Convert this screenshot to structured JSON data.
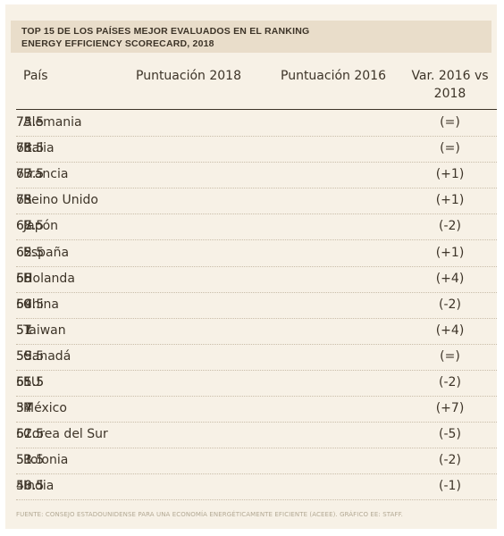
{
  "title": {
    "line1": "TOP 15 DE LOS PAÍSES MEJOR EVALUADOS EN EL RANKING",
    "line2": "ENERGY EFFICIENCY SCORECARD, 2018"
  },
  "columns": {
    "pais": "País",
    "p2018": "Puntuación 2018",
    "p2016": "Puntuación 2016",
    "var_line1": "Var. 2016 vs",
    "var_line2": "2018"
  },
  "rows": [
    {
      "pais": "Alemania",
      "p2018": "75.5",
      "p2016": "73.5",
      "var": "(=)"
    },
    {
      "pais": "Italia",
      "p2018": "75.5",
      "p2016": "68.5",
      "var": "(=)"
    },
    {
      "pais": "Francia",
      "p2018": "73.5",
      "p2016": "67.5",
      "var": "(+1)"
    },
    {
      "pais": "Reino Unido",
      "p2018": "73",
      "p2016": "65",
      "var": "(+1)"
    },
    {
      "pais": "Japón",
      "p2018": "67",
      "p2016": "68.5",
      "var": "(-2)"
    },
    {
      "pais": "España",
      "p2018": "65.5",
      "p2016": "62",
      "var": "(+1)"
    },
    {
      "pais": "Holanda",
      "p2018": "65",
      "p2016": "58",
      "var": "(+4)"
    },
    {
      "pais": "China",
      "p2018": "59.5",
      "p2016": "64",
      "var": "(-2)"
    },
    {
      "pais": "Taiwan",
      "p2018": "57",
      "p2016": "51",
      "var": "(+4)"
    },
    {
      "pais": "Canadá",
      "p2018": "55.5",
      "p2016": "59",
      "var": "(=)"
    },
    {
      "pais": "EU",
      "p2018": "55.5",
      "p2016": "61.5",
      "var": "(-2)"
    },
    {
      "pais": "México",
      "p2018": "54",
      "p2016": "37",
      "var": "(+7)"
    },
    {
      "pais": "Corea del Sur",
      "p2018": "52.5",
      "p2016": "61.5",
      "var": "(-5)"
    },
    {
      "pais": "Polonia",
      "p2018": "51",
      "p2016": "53.5",
      "var": "(-2)"
    },
    {
      "pais": "India",
      "p2018": "50.5",
      "p2016": "48.5",
      "var": "(-1)"
    }
  ],
  "source": "FUENTE: CONSEJO ESTADOUNIDENSE PARA UNA ECONOMÍA ENERGÉTICAMENTE EFICIENTE (ACEEE). GRÁFICO EE: STAFF."
}
